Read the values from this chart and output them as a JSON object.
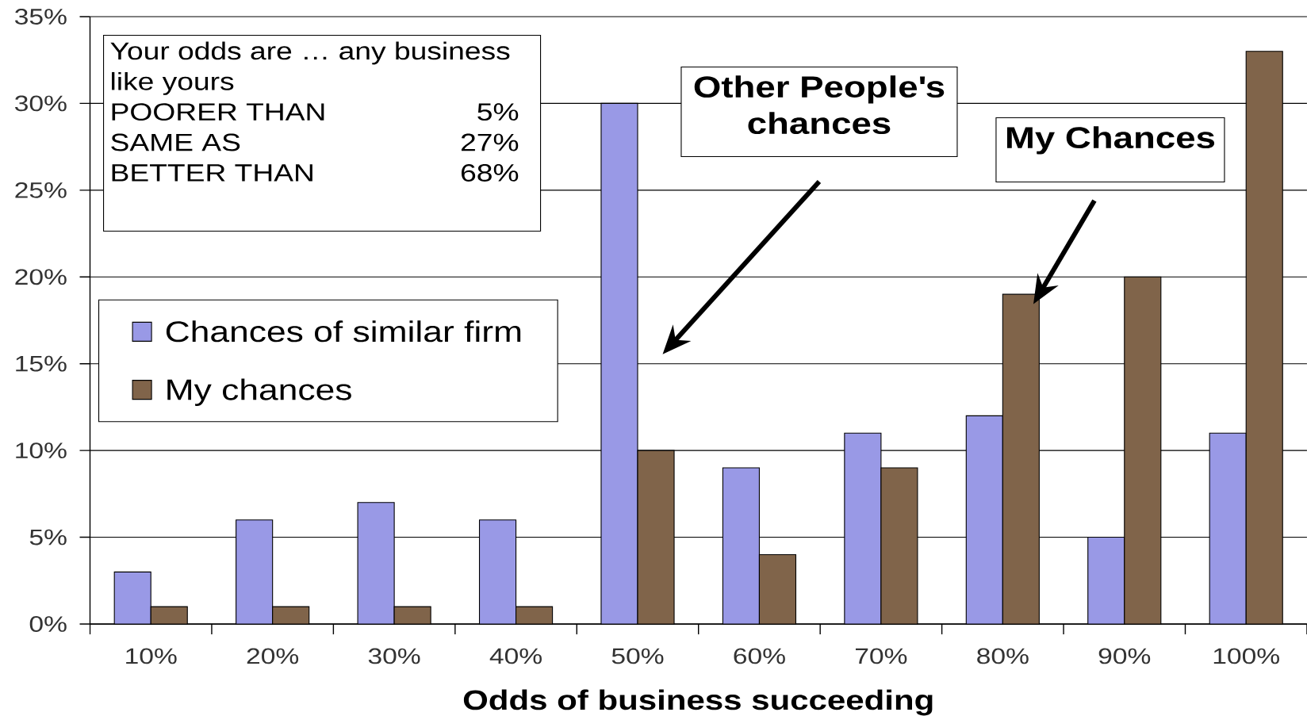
{
  "chart_data": {
    "type": "bar",
    "xlabel": "Odds of business succeeding",
    "categories": [
      "10%",
      "20%",
      "30%",
      "40%",
      "50%",
      "60%",
      "70%",
      "80%",
      "90%",
      "100%"
    ],
    "series": [
      {
        "name": "Chances of similar firm",
        "color": "#9999e6",
        "values": [
          3,
          6,
          7,
          6,
          30,
          9,
          11,
          12,
          5,
          11
        ]
      },
      {
        "name": "My chances",
        "color": "#80644a",
        "values": [
          1,
          1,
          1,
          1,
          10,
          4,
          9,
          19,
          20,
          33
        ]
      }
    ],
    "ylim": [
      0,
      35
    ],
    "yticks": [
      {
        "value": 0,
        "label": "0%"
      },
      {
        "value": 5,
        "label": "5%"
      },
      {
        "value": 10,
        "label": "10%"
      },
      {
        "value": 15,
        "label": "15%"
      },
      {
        "value": 20,
        "label": "20%"
      },
      {
        "value": 25,
        "label": "25%"
      },
      {
        "value": 30,
        "label": "30%"
      },
      {
        "value": 35,
        "label": "35%"
      }
    ],
    "grid": "y",
    "legend": "left",
    "annotations": [
      "Your odds are … any business like yours",
      "POORER THAN",
      "5%",
      "SAME AS",
      "27%",
      "BETTER THAN",
      "68%",
      "Other People's chances",
      "My Chances"
    ]
  }
}
